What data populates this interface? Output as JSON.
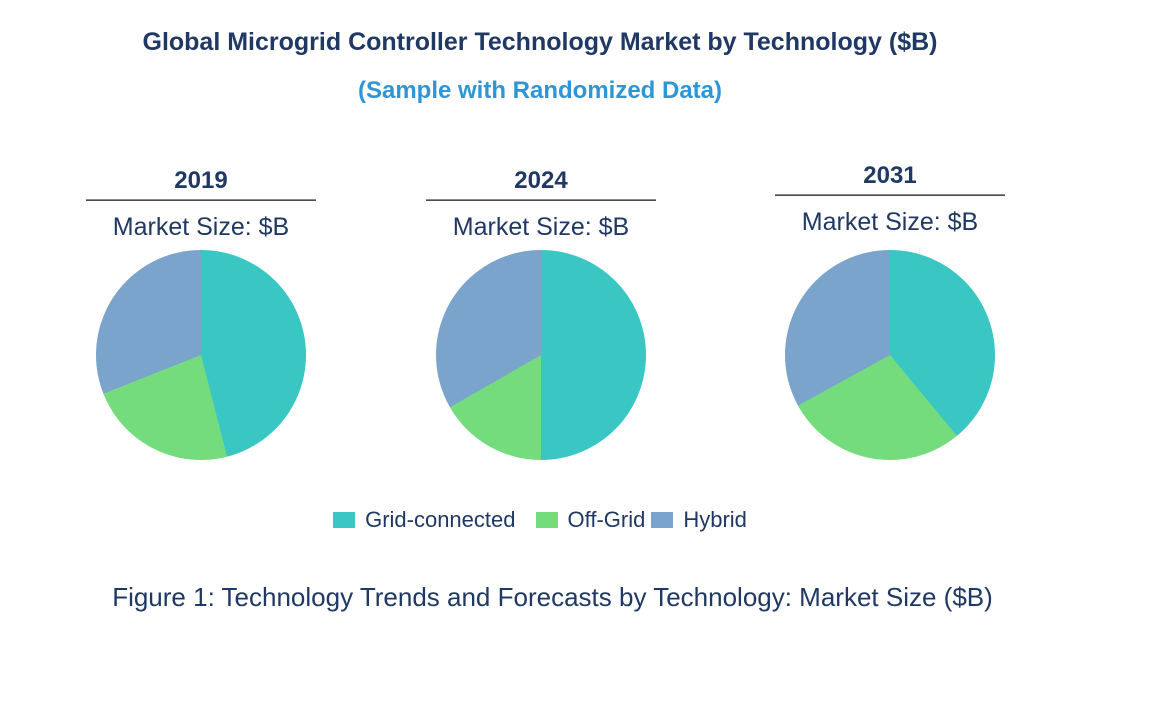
{
  "header": {
    "title": "Global Microgrid Controller Technology Market by Technology ($B)",
    "subtitle": "(Sample with Randomized Data)"
  },
  "colors": {
    "title_navy": "#1F3864",
    "subtitle_blue": "#2E96D6",
    "grid_connected_teal": "#3AC6C2",
    "off_grid_green": "#74DC7C",
    "hybrid_blue": "#7AA4CC",
    "rule_gray": "#4D4D4D"
  },
  "legend": [
    {
      "label": "Grid-connected",
      "color": "#3AC6C2"
    },
    {
      "label": "Off-Grid",
      "color": "#74DC7C"
    },
    {
      "label": "Hybrid",
      "color": "#7AA4CC"
    }
  ],
  "caption": "Figure 1: Technology Trends and Forecasts by Technology: Market Size ($B)",
  "chart_data": [
    {
      "type": "pie",
      "title": "2019",
      "subtitle": "Market Size: $B",
      "start_angle_deg": 0,
      "direction": "clockwise",
      "slices": [
        {
          "name": "Grid-connected",
          "pct": 46
        },
        {
          "name": "Off-Grid",
          "pct": 23
        },
        {
          "name": "Hybrid",
          "pct": 31
        }
      ]
    },
    {
      "type": "pie",
      "title": "2024",
      "subtitle": "Market Size: $B",
      "start_angle_deg": 0,
      "direction": "clockwise",
      "slices": [
        {
          "name": "Grid-connected",
          "pct": 50
        },
        {
          "name": "Off-Grid",
          "pct": 16.7
        },
        {
          "name": "Hybrid",
          "pct": 33.3
        }
      ]
    },
    {
      "type": "pie",
      "title": "2031",
      "subtitle": "Market Size: $B",
      "start_angle_deg": 0,
      "direction": "clockwise",
      "slices": [
        {
          "name": "Grid-connected",
          "pct": 39
        },
        {
          "name": "Off-Grid",
          "pct": 28
        },
        {
          "name": "Hybrid",
          "pct": 33
        }
      ]
    }
  ]
}
